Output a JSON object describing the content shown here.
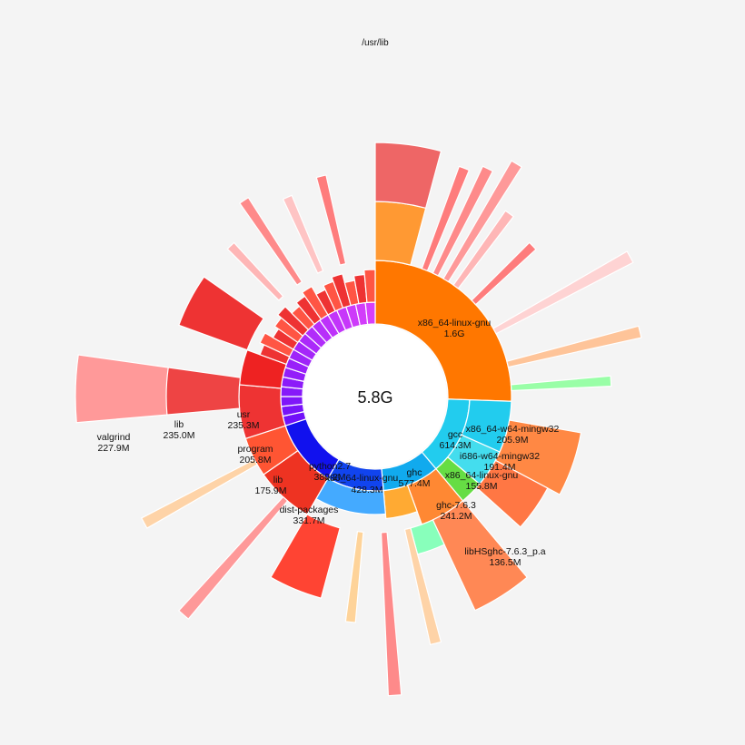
{
  "root": {
    "path": "/usr/lib",
    "total": "5.8G"
  },
  "labels": [
    {
      "name": "x86_64-linux-gnu",
      "size": "1.6G"
    },
    {
      "name": "gcc",
      "size": "614.3M"
    },
    {
      "name": "x86_64-w64-mingw32",
      "size": "205.9M"
    },
    {
      "name": "i686-w64-mingw32",
      "size": "191.4M"
    },
    {
      "name": "x86_64-linux-gnu",
      "size": "155.8M"
    },
    {
      "name": "ghc",
      "size": "577.4M"
    },
    {
      "name": "ghc-7.6.3",
      "size": "241.2M"
    },
    {
      "name": "libHSghc-7.6.3_p.a",
      "size": "136.5M"
    },
    {
      "name": "x86_64-linux-gnu",
      "size": "428.3M"
    },
    {
      "name": "python2.7",
      "size": "380.2M"
    },
    {
      "name": "dist-packages",
      "size": "331.7M"
    },
    {
      "name": "lib",
      "size": "175.9M"
    },
    {
      "name": "program",
      "size": "205.8M"
    },
    {
      "name": "usr",
      "size": "235.3M"
    },
    {
      "name": "lib",
      "size": "235.0M"
    },
    {
      "name": "valgrind",
      "size": "227.9M"
    }
  ],
  "colors": {
    "orange": "#ff7700",
    "red": "#ee3322",
    "blue": "#1133ee",
    "cyan": "#22ccee",
    "purple": "#9933ff",
    "background": "#f4f4f4"
  }
}
